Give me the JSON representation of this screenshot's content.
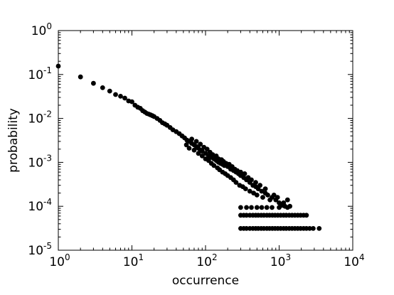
{
  "chart_data": {
    "type": "scatter",
    "title": "",
    "xlabel": "occurrence",
    "ylabel": "probability",
    "xscale": "log",
    "yscale": "log",
    "xlim": [
      1,
      10000
    ],
    "ylim": [
      1e-05,
      1
    ],
    "grid": false,
    "legend": "none",
    "marker_color": "#000000",
    "x_ticks": [
      {
        "base": "10",
        "exp": "0",
        "value": 1
      },
      {
        "base": "10",
        "exp": "1",
        "value": 10
      },
      {
        "base": "10",
        "exp": "2",
        "value": 100
      },
      {
        "base": "10",
        "exp": "3",
        "value": 1000
      },
      {
        "base": "10",
        "exp": "4",
        "value": 10000
      }
    ],
    "y_ticks": [
      {
        "base": "10",
        "exp": "0",
        "value": 1
      },
      {
        "base": "10",
        "exp": "-1",
        "value": 0.1
      },
      {
        "base": "10",
        "exp": "-2",
        "value": 0.01
      },
      {
        "base": "10",
        "exp": "-3",
        "value": 0.001
      },
      {
        "base": "10",
        "exp": "-4",
        "value": 0.0001
      },
      {
        "base": "10",
        "exp": "-5",
        "value": 1e-05
      }
    ],
    "points": [
      [
        1,
        0.155
      ],
      [
        2,
        0.088
      ],
      [
        3,
        0.063
      ],
      [
        4,
        0.05
      ],
      [
        5,
        0.042
      ],
      [
        6,
        0.035
      ],
      [
        7,
        0.032
      ],
      [
        8,
        0.029
      ],
      [
        9,
        0.025
      ],
      [
        10,
        0.024
      ],
      [
        11,
        0.02
      ],
      [
        12,
        0.018
      ],
      [
        13,
        0.017
      ],
      [
        14,
        0.015
      ],
      [
        15,
        0.014
      ],
      [
        16,
        0.013
      ],
      [
        17,
        0.0125
      ],
      [
        18,
        0.012
      ],
      [
        19,
        0.0115
      ],
      [
        20,
        0.011
      ],
      [
        22,
        0.01
      ],
      [
        24,
        0.009
      ],
      [
        26,
        0.008
      ],
      [
        28,
        0.0075
      ],
      [
        30,
        0.007
      ],
      [
        33,
        0.0062
      ],
      [
        36,
        0.0055
      ],
      [
        40,
        0.005
      ],
      [
        44,
        0.0045
      ],
      [
        48,
        0.004
      ],
      [
        52,
        0.0036
      ],
      [
        56,
        0.0032
      ],
      [
        60,
        0.003
      ],
      [
        65,
        0.0027
      ],
      [
        70,
        0.0025
      ],
      [
        75,
        0.0023
      ],
      [
        80,
        0.0021
      ],
      [
        85,
        0.0019
      ],
      [
        90,
        0.0018
      ],
      [
        100,
        0.0016
      ],
      [
        110,
        0.0014
      ],
      [
        120,
        0.0013
      ],
      [
        130,
        0.0012
      ],
      [
        140,
        0.0011
      ],
      [
        150,
        0.001
      ],
      [
        160,
        0.00095
      ],
      [
        170,
        0.0009
      ],
      [
        180,
        0.00085
      ],
      [
        200,
        0.0008
      ],
      [
        220,
        0.0007
      ],
      [
        240,
        0.00065
      ],
      [
        260,
        0.0006
      ],
      [
        280,
        0.00055
      ],
      [
        300,
        0.0005
      ],
      [
        330,
        0.00045
      ],
      [
        360,
        0.0004
      ],
      [
        400,
        0.00035
      ],
      [
        440,
        0.0003
      ],
      [
        480,
        0.00028
      ],
      [
        520,
        0.00025
      ],
      [
        580,
        0.00022
      ],
      [
        650,
        0.0002
      ],
      [
        700,
        0.00018
      ],
      [
        800,
        0.00016
      ],
      [
        900,
        0.00014
      ],
      [
        1000,
        0.00012
      ],
      [
        1100,
        0.000105
      ],
      [
        1200,
        0.0001
      ],
      [
        1400,
        0.0001
      ],
      [
        55,
        0.0025
      ],
      [
        60,
        0.0021
      ],
      [
        65,
        0.0034
      ],
      [
        70,
        0.0019
      ],
      [
        75,
        0.003
      ],
      [
        80,
        0.0016
      ],
      [
        85,
        0.0026
      ],
      [
        90,
        0.0014
      ],
      [
        95,
        0.0022
      ],
      [
        100,
        0.0012
      ],
      [
        105,
        0.002
      ],
      [
        110,
        0.0011
      ],
      [
        115,
        0.0017
      ],
      [
        120,
        0.00095
      ],
      [
        125,
        0.0015
      ],
      [
        130,
        0.00085
      ],
      [
        140,
        0.0014
      ],
      [
        145,
        0.00075
      ],
      [
        150,
        0.0012
      ],
      [
        155,
        0.00068
      ],
      [
        165,
        0.00115
      ],
      [
        170,
        0.0006
      ],
      [
        175,
        0.00105
      ],
      [
        185,
        0.00055
      ],
      [
        190,
        0.00095
      ],
      [
        200,
        0.0005
      ],
      [
        210,
        0.0009
      ],
      [
        220,
        0.00045
      ],
      [
        230,
        0.0008
      ],
      [
        240,
        0.0004
      ],
      [
        250,
        0.0007
      ],
      [
        260,
        0.00035
      ],
      [
        270,
        0.00065
      ],
      [
        290,
        0.0003
      ],
      [
        300,
        0.0006
      ],
      [
        320,
        0.00028
      ],
      [
        340,
        0.00055
      ],
      [
        350,
        0.00025
      ],
      [
        380,
        0.00045
      ],
      [
        400,
        0.00022
      ],
      [
        420,
        0.0004
      ],
      [
        450,
        0.0002
      ],
      [
        480,
        0.00035
      ],
      [
        500,
        0.00018
      ],
      [
        550,
        0.0003
      ],
      [
        600,
        0.00016
      ],
      [
        650,
        0.00025
      ],
      [
        750,
        0.00014
      ],
      [
        850,
        0.00018
      ],
      [
        950,
        0.00016
      ],
      [
        1150,
        0.00012
      ],
      [
        1300,
        0.00014
      ],
      [
        300,
        6.25e-05
      ],
      [
        330,
        6.25e-05
      ],
      [
        360,
        6.25e-05
      ],
      [
        400,
        6.25e-05
      ],
      [
        440,
        6.25e-05
      ],
      [
        480,
        6.25e-05
      ],
      [
        520,
        6.25e-05
      ],
      [
        570,
        6.25e-05
      ],
      [
        620,
        6.25e-05
      ],
      [
        680,
        6.25e-05
      ],
      [
        740,
        6.25e-05
      ],
      [
        810,
        6.25e-05
      ],
      [
        880,
        6.25e-05
      ],
      [
        960,
        6.25e-05
      ],
      [
        1050,
        6.25e-05
      ],
      [
        1150,
        6.25e-05
      ],
      [
        1250,
        6.25e-05
      ],
      [
        1370,
        6.25e-05
      ],
      [
        1500,
        6.25e-05
      ],
      [
        1640,
        6.25e-05
      ],
      [
        1790,
        6.25e-05
      ],
      [
        1960,
        6.25e-05
      ],
      [
        2150,
        6.25e-05
      ],
      [
        2350,
        6.25e-05
      ],
      [
        300,
        3.13e-05
      ],
      [
        330,
        3.13e-05
      ],
      [
        360,
        3.13e-05
      ],
      [
        400,
        3.13e-05
      ],
      [
        440,
        3.13e-05
      ],
      [
        480,
        3.13e-05
      ],
      [
        520,
        3.13e-05
      ],
      [
        570,
        3.13e-05
      ],
      [
        620,
        3.13e-05
      ],
      [
        680,
        3.13e-05
      ],
      [
        740,
        3.13e-05
      ],
      [
        810,
        3.13e-05
      ],
      [
        880,
        3.13e-05
      ],
      [
        960,
        3.13e-05
      ],
      [
        1050,
        3.13e-05
      ],
      [
        1150,
        3.13e-05
      ],
      [
        1250,
        3.13e-05
      ],
      [
        1370,
        3.13e-05
      ],
      [
        1500,
        3.13e-05
      ],
      [
        1640,
        3.13e-05
      ],
      [
        1790,
        3.13e-05
      ],
      [
        1960,
        3.13e-05
      ],
      [
        2150,
        3.13e-05
      ],
      [
        2350,
        3.13e-05
      ],
      [
        2600,
        3.13e-05
      ],
      [
        2900,
        3.13e-05
      ],
      [
        3500,
        3.13e-05
      ],
      [
        300,
        9.38e-05
      ],
      [
        360,
        9.38e-05
      ],
      [
        420,
        9.38e-05
      ],
      [
        500,
        9.38e-05
      ],
      [
        580,
        9.38e-05
      ],
      [
        680,
        9.38e-05
      ],
      [
        800,
        9.38e-05
      ],
      [
        1000,
        9.38e-05
      ],
      [
        1300,
        9.38e-05
      ]
    ]
  }
}
